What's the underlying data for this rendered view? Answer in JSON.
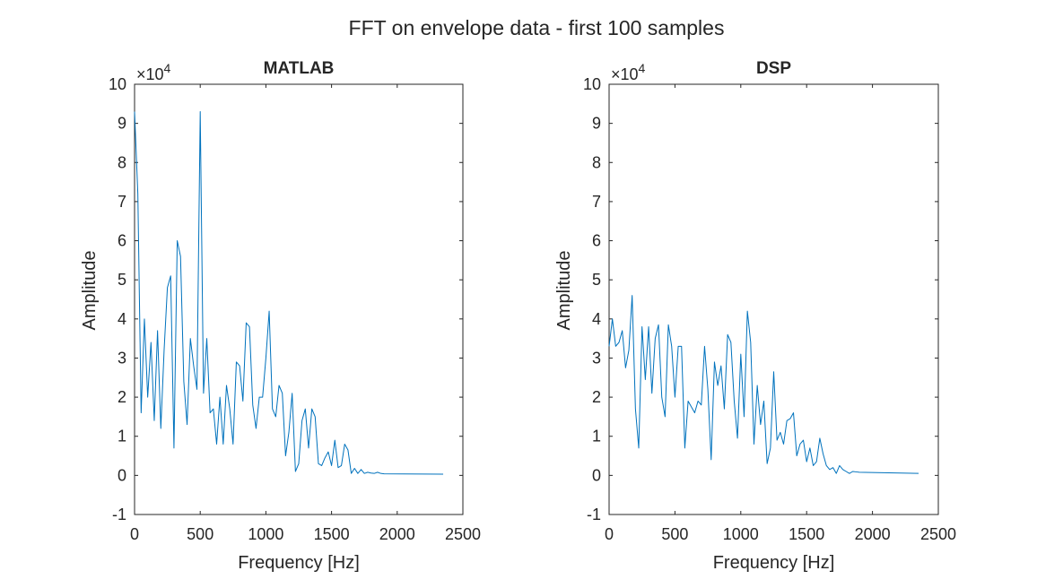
{
  "figure": {
    "suptitle": "FFT on envelope data - first 100 samples"
  },
  "colors": {
    "line": "#0072BD",
    "axes": "#262626",
    "background": "#ffffff"
  },
  "chart_data": [
    {
      "type": "line",
      "title": "MATLAB",
      "xlabel": "Frequency [Hz]",
      "ylabel": "Amplitude",
      "y_exponent_label": "×10",
      "y_exponent": "4",
      "xlim": [
        0,
        2500
      ],
      "ylim": [
        -10000,
        100000
      ],
      "xticks": [
        0,
        500,
        1000,
        1500,
        2000,
        2500
      ],
      "yticks": [
        -10000,
        0,
        10000,
        20000,
        30000,
        40000,
        50000,
        60000,
        70000,
        80000,
        90000,
        100000
      ],
      "ytick_labels": [
        "-1",
        "0",
        "1",
        "2",
        "3",
        "4",
        "5",
        "6",
        "7",
        "8",
        "9",
        "10"
      ],
      "grid": false,
      "series": [
        {
          "x": [
            0,
            25,
            50,
            75,
            100,
            125,
            150,
            175,
            200,
            225,
            250,
            275,
            300,
            325,
            350,
            375,
            400,
            425,
            450,
            475,
            500,
            525,
            550,
            575,
            600,
            625,
            650,
            675,
            700,
            725,
            750,
            775,
            800,
            825,
            850,
            875,
            900,
            925,
            950,
            975,
            1000,
            1025,
            1050,
            1075,
            1100,
            1125,
            1150,
            1175,
            1200,
            1225,
            1250,
            1275,
            1300,
            1325,
            1350,
            1375,
            1400,
            1425,
            1450,
            1475,
            1500,
            1525,
            1550,
            1575,
            1600,
            1625,
            1650,
            1675,
            1700,
            1725,
            1750,
            1775,
            1800,
            1825,
            1850,
            1875,
            1900,
            2350
          ],
          "y": [
            93000,
            72000,
            16000,
            40000,
            20000,
            34000,
            14000,
            37000,
            12000,
            32000,
            48000,
            51000,
            7000,
            60000,
            56000,
            24000,
            13000,
            35000,
            28000,
            22000,
            93000,
            21000,
            35000,
            16000,
            17000,
            8000,
            20000,
            8000,
            23000,
            17000,
            8000,
            29000,
            28000,
            19000,
            39000,
            38000,
            18000,
            12000,
            20000,
            20000,
            30000,
            42000,
            17000,
            15000,
            23000,
            21000,
            5000,
            11000,
            21000,
            1000,
            3000,
            14000,
            17000,
            7000,
            17000,
            15000,
            3000,
            2500,
            4500,
            6000,
            2500,
            9000,
            2000,
            2500,
            8000,
            6500,
            500,
            1800,
            500,
            1500,
            500,
            800,
            600,
            500,
            800,
            500,
            400,
            300
          ]
        }
      ]
    },
    {
      "type": "line",
      "title": "DSP",
      "xlabel": "Frequency [Hz]",
      "ylabel": "Amplitude",
      "y_exponent_label": "×10",
      "y_exponent": "4",
      "xlim": [
        0,
        2500
      ],
      "ylim": [
        -10000,
        100000
      ],
      "xticks": [
        0,
        500,
        1000,
        1500,
        2000,
        2500
      ],
      "yticks": [
        -10000,
        0,
        10000,
        20000,
        30000,
        40000,
        50000,
        60000,
        70000,
        80000,
        90000,
        100000
      ],
      "ytick_labels": [
        "-1",
        "0",
        "1",
        "2",
        "3",
        "4",
        "5",
        "6",
        "7",
        "8",
        "9",
        "10"
      ],
      "grid": false,
      "series": [
        {
          "x": [
            0,
            25,
            50,
            75,
            100,
            125,
            150,
            175,
            200,
            225,
            250,
            275,
            300,
            325,
            350,
            375,
            400,
            425,
            450,
            475,
            500,
            525,
            550,
            575,
            600,
            625,
            650,
            675,
            700,
            725,
            750,
            775,
            800,
            825,
            850,
            875,
            900,
            925,
            950,
            975,
            1000,
            1025,
            1050,
            1075,
            1100,
            1125,
            1150,
            1175,
            1200,
            1225,
            1250,
            1275,
            1300,
            1325,
            1350,
            1375,
            1400,
            1425,
            1450,
            1475,
            1500,
            1525,
            1550,
            1575,
            1600,
            1625,
            1650,
            1675,
            1700,
            1725,
            1750,
            1775,
            1800,
            1825,
            1850,
            1875,
            1900,
            2350
          ],
          "y": [
            33000,
            40000,
            33000,
            34000,
            37000,
            27500,
            32000,
            46000,
            17000,
            7000,
            38000,
            24500,
            38000,
            21000,
            35000,
            38500,
            20000,
            15000,
            38500,
            33000,
            20000,
            33000,
            33000,
            7000,
            19000,
            17500,
            16000,
            19000,
            18000,
            33000,
            22000,
            4000,
            29000,
            23000,
            28000,
            17000,
            36000,
            34000,
            19000,
            9500,
            31000,
            15000,
            42000,
            34000,
            8000,
            23000,
            13000,
            19000,
            3000,
            7000,
            26500,
            9000,
            11000,
            8000,
            14000,
            14500,
            16000,
            5000,
            8000,
            9000,
            3500,
            7000,
            2500,
            3500,
            9500,
            5500,
            2500,
            1500,
            2000,
            500,
            2500,
            1500,
            1000,
            500,
            1000,
            900,
            800,
            500
          ]
        }
      ]
    }
  ]
}
